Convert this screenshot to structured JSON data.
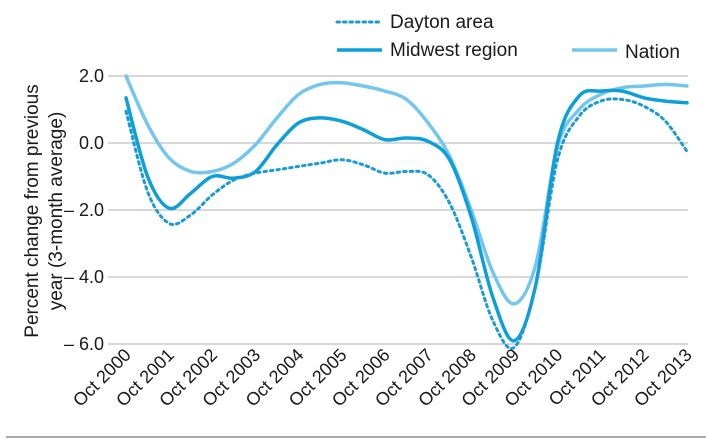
{
  "chart_data": {
    "type": "line",
    "ylabel_line1": "Percent change from previous",
    "ylabel_line2": "year (3-month average)",
    "ylim": [
      -6.0,
      2.0
    ],
    "yticks": [
      {
        "value": 2.0,
        "label": "2.0"
      },
      {
        "value": 0.0,
        "label": "0.0"
      },
      {
        "value": -2.0,
        "label": "– 2.0"
      },
      {
        "value": -4.0,
        "label": "– 4.0"
      },
      {
        "value": -6.0,
        "label": "– 6.0"
      }
    ],
    "xlim": [
      "Oct 2000",
      "Oct 2013"
    ],
    "x": [
      "Oct 2000",
      "Apr 2001",
      "Oct 2001",
      "Apr 2002",
      "Oct 2002",
      "Apr 2003",
      "Oct 2003",
      "Apr 2004",
      "Oct 2004",
      "Apr 2005",
      "Oct 2005",
      "Apr 2006",
      "Oct 2006",
      "Apr 2007",
      "Oct 2007",
      "Apr 2008",
      "Oct 2008",
      "Apr 2009",
      "Oct 2009",
      "Apr 2010",
      "Oct 2010",
      "Apr 2011",
      "Oct 2011",
      "Apr 2012",
      "Oct 2012",
      "Apr 2013",
      "Oct 2013"
    ],
    "xtick_labels": [
      "Oct 2000",
      "Oct 2001",
      "Oct 2002",
      "Oct 2003",
      "Oct 2004",
      "Oct 2005",
      "Oct 2006",
      "Oct 2007",
      "Oct 2008",
      "Oct 2009",
      "Oct 2010",
      "Oct 2011",
      "Oct 2012",
      "Oct 2013"
    ],
    "grid": "horizontal",
    "legend_placement": "top",
    "series": [
      {
        "name": "Dayton area",
        "style": "dotted",
        "color": "#199bd8",
        "values": [
          0.95,
          -1.45,
          -2.4,
          -2.15,
          -1.55,
          -1.1,
          -0.9,
          -0.8,
          -0.7,
          -0.6,
          -0.5,
          -0.65,
          -0.9,
          -0.85,
          -0.95,
          -1.8,
          -3.4,
          -5.3,
          -6.1,
          -4.2,
          -0.5,
          0.8,
          1.25,
          1.3,
          1.1,
          0.65,
          -0.25
        ]
      },
      {
        "name": "Midwest region",
        "style": "solid",
        "color": "#0d9fd8",
        "values": [
          1.35,
          -1.0,
          -1.95,
          -1.5,
          -1.0,
          -1.05,
          -0.85,
          -0.05,
          0.6,
          0.75,
          0.65,
          0.4,
          0.1,
          0.15,
          0.05,
          -0.5,
          -2.2,
          -4.6,
          -5.9,
          -4.2,
          0.0,
          1.4,
          1.55,
          1.55,
          1.35,
          1.25,
          1.2
        ]
      },
      {
        "name": "Nation",
        "style": "solid",
        "color": "#73c6ee",
        "values": [
          2.0,
          0.55,
          -0.45,
          -0.85,
          -0.85,
          -0.6,
          -0.05,
          0.75,
          1.45,
          1.75,
          1.8,
          1.7,
          1.55,
          1.3,
          0.6,
          -0.4,
          -2.0,
          -3.85,
          -4.8,
          -3.6,
          -0.1,
          1.0,
          1.45,
          1.65,
          1.7,
          1.75,
          1.7
        ]
      }
    ]
  }
}
